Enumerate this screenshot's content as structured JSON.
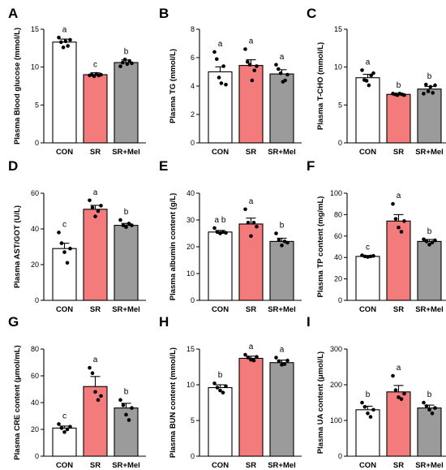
{
  "colors": {
    "CON": "#ffffff",
    "SR": "#f47b7b",
    "SR+Mel": "#9b9b9b"
  },
  "chart_data": [
    {
      "panel": "A",
      "type": "bar",
      "categories": [
        "CON",
        "SR",
        "SR+Mel"
      ],
      "values": [
        13.3,
        9.0,
        10.6
      ],
      "errors": [
        0.4,
        0.25,
        0.35
      ],
      "points": [
        [
          13.9,
          13.3,
          12.6,
          13.4,
          12.8,
          13.6
        ],
        [
          8.9,
          9.0,
          8.8,
          9.1,
          8.9,
          9.0
        ],
        [
          10.1,
          10.6,
          11.0,
          10.4,
          10.8,
          10.5
        ]
      ],
      "significance": [
        "a",
        "c",
        "b"
      ],
      "ylabel": "Plasma Blood glucose (mmol/L)",
      "ylim": [
        0,
        15
      ],
      "yticks": [
        0,
        5,
        10,
        15
      ]
    },
    {
      "panel": "B",
      "type": "bar",
      "categories": [
        "CON",
        "SR",
        "SR+Mel"
      ],
      "values": [
        5.0,
        5.45,
        4.85
      ],
      "errors": [
        0.35,
        0.4,
        0.3
      ],
      "points": [
        [
          6.4,
          5.9,
          4.6,
          4.2,
          5.4,
          4.1
        ],
        [
          6.6,
          5.7,
          5.5,
          4.4,
          5.1,
          5.4
        ],
        [
          5.5,
          5.2,
          4.9,
          4.3,
          4.4,
          4.8
        ]
      ],
      "significance": [
        "a",
        "a",
        "a"
      ],
      "ylabel": "Plasma TG (mmol/L)",
      "ylim": [
        0,
        8
      ],
      "yticks": [
        0,
        2,
        4,
        6,
        8
      ]
    },
    {
      "panel": "C",
      "type": "bar",
      "categories": [
        "CON",
        "SR",
        "SR+Mel"
      ],
      "values": [
        8.6,
        6.4,
        7.1
      ],
      "errors": [
        0.45,
        0.15,
        0.35
      ],
      "points": [
        [
          9.6,
          8.3,
          8.2,
          7.6,
          8.9,
          9.2
        ],
        [
          6.5,
          6.4,
          6.3,
          6.5,
          6.4,
          6.3
        ],
        [
          6.5,
          7.7,
          6.8,
          7.4,
          6.6,
          7.6
        ]
      ],
      "significance": [
        "a",
        "b",
        "b"
      ],
      "ylabel": "Plasma T-CHO (mmol/L)",
      "ylim": [
        0,
        15
      ],
      "yticks": [
        0,
        5,
        10,
        15
      ]
    },
    {
      "panel": "D",
      "type": "bar",
      "categories": [
        "CON",
        "SR",
        "SR+Mel"
      ],
      "values": [
        29,
        51,
        42
      ],
      "errors": [
        3.0,
        2.2,
        1.1
      ],
      "points": [
        [
          38,
          32,
          27,
          21,
          29
        ],
        [
          56,
          52,
          47,
          50,
          53
        ],
        [
          45,
          42,
          41,
          43,
          42
        ]
      ],
      "significance": [
        "c",
        "a",
        "b"
      ],
      "ylabel": "Plasma AST/GOT (U/L)",
      "ylim": [
        0,
        60
      ],
      "yticks": [
        0,
        20,
        40,
        60
      ]
    },
    {
      "panel": "E",
      "type": "bar",
      "categories": [
        "CON",
        "SR",
        "SR+Mel"
      ],
      "values": [
        25.5,
        28.5,
        22
      ],
      "errors": [
        0.6,
        2.2,
        1.2
      ],
      "points": [
        [
          27,
          25.5,
          25,
          25.5,
          25.2
        ],
        [
          34,
          29,
          24,
          29,
          27.5
        ],
        [
          25,
          22.5,
          20.5,
          22,
          21.5
        ]
      ],
      "significance": [
        "a b",
        "a",
        "b"
      ],
      "ylabel": "Plasma albumin content (g/L)",
      "ylim": [
        0,
        40
      ],
      "yticks": [
        0,
        10,
        20,
        30,
        40
      ]
    },
    {
      "panel": "F",
      "type": "bar",
      "categories": [
        "CON",
        "SR",
        "SR+Mel"
      ],
      "values": [
        41,
        74,
        55
      ],
      "errors": [
        0.8,
        6,
        1.8
      ],
      "points": [
        [
          42,
          41,
          40.5,
          41,
          41.5
        ],
        [
          90,
          76,
          68,
          64,
          74
        ],
        [
          57,
          55,
          52,
          54,
          56
        ]
      ],
      "significance": [
        "c",
        "a",
        "b"
      ],
      "ylabel": "Plasma TP content (mg/mL)",
      "ylim": [
        0,
        100
      ],
      "yticks": [
        0,
        20,
        40,
        60,
        80,
        100
      ]
    },
    {
      "panel": "G",
      "type": "bar",
      "categories": [
        "CON",
        "SR",
        "SR+Mel"
      ],
      "values": [
        21,
        52,
        36
      ],
      "errors": [
        1.5,
        7.5,
        3.5
      ],
      "points": [
        [
          24,
          21,
          18,
          20,
          22
        ],
        [
          66,
          62,
          48,
          42,
          45
        ],
        [
          42,
          38,
          31,
          27,
          36
        ]
      ],
      "significance": [
        "c",
        "a",
        "b"
      ],
      "ylabel": "Plasma CRE content (μmol/mL)",
      "ylim": [
        0,
        80
      ],
      "yticks": [
        0,
        20,
        40,
        60,
        80
      ]
    },
    {
      "panel": "H",
      "type": "bar",
      "categories": [
        "CON",
        "SR",
        "SR+Mel"
      ],
      "values": [
        9.6,
        13.7,
        13.1
      ],
      "errors": [
        0.4,
        0.3,
        0.35
      ],
      "points": [
        [
          10.2,
          9.6,
          9.2,
          8.9,
          9.8
        ],
        [
          14.2,
          13.8,
          13.5,
          13.4,
          13.9
        ],
        [
          13.8,
          13.3,
          12.8,
          12.9,
          13.4
        ]
      ],
      "significance": [
        "b",
        "a",
        "a"
      ],
      "ylabel": "Plasma BUN content (mmol/L)",
      "ylim": [
        0,
        15
      ],
      "yticks": [
        0,
        5,
        10,
        15
      ]
    },
    {
      "panel": "I",
      "type": "bar",
      "categories": [
        "CON",
        "SR",
        "SR+Mel"
      ],
      "values": [
        130,
        180,
        135
      ],
      "errors": [
        10,
        18,
        8
      ],
      "points": [
        [
          150,
          138,
          120,
          110,
          130
        ],
        [
          225,
          185,
          165,
          160,
          175
        ],
        [
          150,
          140,
          130,
          120,
          135
        ]
      ],
      "significance": [
        "b",
        "a",
        "b"
      ],
      "ylabel": "Plasma UA content (μmol/L)",
      "ylim": [
        0,
        300
      ],
      "yticks": [
        0,
        100,
        200,
        300
      ]
    }
  ]
}
